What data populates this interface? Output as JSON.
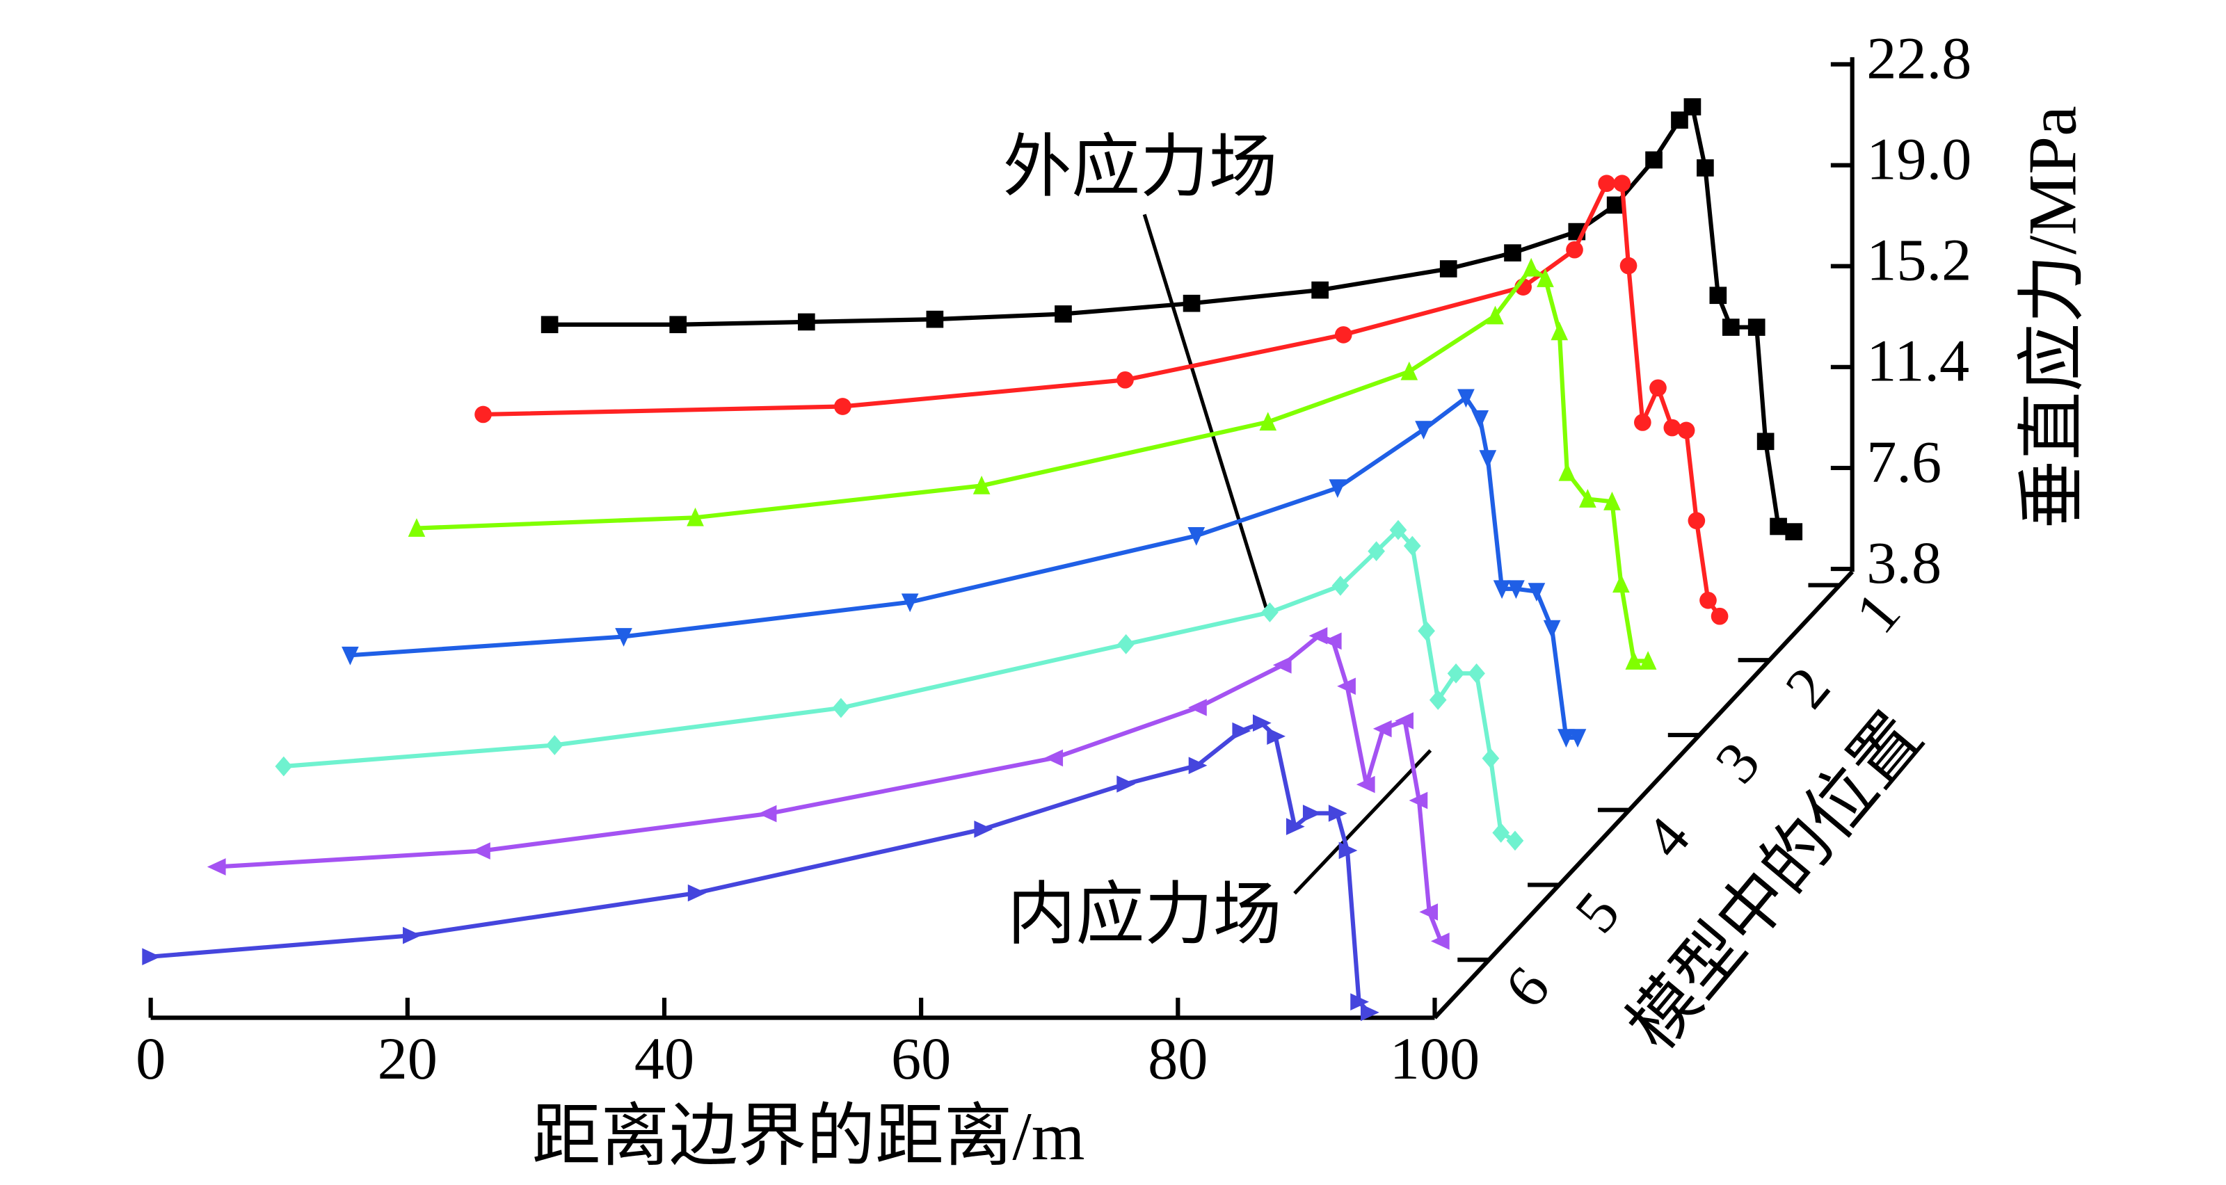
{
  "chart_data": {
    "type": "waterfall3d",
    "x_label": "距离边界的距离/m",
    "y_label": "垂直应力/MPa",
    "depth_label": "模型中的位置",
    "xlim": [
      0,
      100
    ],
    "xticks": [
      0,
      20,
      40,
      60,
      80,
      100
    ],
    "ylim": [
      3.8,
      22.8
    ],
    "yticks": [
      3.8,
      7.6,
      11.4,
      15.2,
      {
        "value": 19,
        "label": "19.0"
      },
      22.8
    ],
    "categories": [
      "1",
      "2",
      "3",
      "4",
      "5",
      "6"
    ],
    "annotations": [
      "外应力场",
      "内应力场"
    ],
    "series": [
      {
        "color": "#000000",
        "marker": "square",
        "x": [
          0,
          10,
          20,
          30,
          40,
          50,
          60,
          70,
          75,
          80,
          83,
          86,
          88,
          89,
          90,
          91,
          92,
          94,
          94.7,
          95.7,
          96.9
        ],
        "values": [
          13.0,
          13.0,
          13.1,
          13.2,
          13.4,
          13.8,
          14.3,
          15.1,
          15.7,
          16.5,
          17.5,
          19.2,
          20.7,
          21.2,
          18.9,
          14.1,
          12.9,
          12.9,
          8.6,
          5.4,
          5.2
        ]
      },
      {
        "color": "#ff2222",
        "marker": "circle",
        "x": [
          0,
          28,
          50,
          67,
          81,
          85,
          87.5,
          88.7,
          89.2,
          90.3,
          91.5,
          92.6,
          93.7,
          94.5,
          95.4,
          96.3
        ],
        "values": [
          12.2,
          12.5,
          13.5,
          15.2,
          17.0,
          18.4,
          20.9,
          20.9,
          17.8,
          11.9,
          13.2,
          11.7,
          11.6,
          8.2,
          5.2,
          4.6
        ]
      },
      {
        "color": "#80ff00",
        "marker": "triangle-up",
        "x": [
          0,
          21.7,
          44,
          66.3,
          77.3,
          84,
          86.8,
          87.9,
          89,
          89.6,
          91.2,
          93.1,
          93.8,
          94.8,
          95.9
        ],
        "values": [
          10.5,
          10.9,
          12.1,
          14.5,
          16.4,
          18.5,
          20.3,
          19.9,
          17.9,
          12.6,
          11.6,
          11.5,
          8.4,
          5.5,
          5.5
        ]
      },
      {
        "color": "#1f5fe6",
        "marker": "triangle-down",
        "x": [
          0,
          21.3,
          43.6,
          65.9,
          76.9,
          83.6,
          86.9,
          88,
          88.6,
          89.7,
          90.8,
          92.4,
          93.6,
          94.7,
          95.6
        ],
        "values": [
          8.3,
          9.0,
          10.3,
          12.8,
          14.6,
          16.8,
          18.0,
          17.2,
          15.7,
          10.8,
          10.8,
          10.7,
          9.3,
          5.2,
          5.2
        ]
      },
      {
        "color": "#6ff2cf",
        "marker": "diamond",
        "x": [
          0,
          21.1,
          43.4,
          65.6,
          76.8,
          82.3,
          85.1,
          86.8,
          87.9,
          89,
          89.9,
          91.3,
          92.9,
          94,
          94.8,
          95.9
        ],
        "values": [
          6.7,
          7.5,
          8.9,
          11.3,
          12.5,
          13.5,
          14.8,
          15.6,
          15.0,
          11.8,
          9.2,
          10.2,
          10.2,
          7.0,
          4.2,
          3.9
        ]
      },
      {
        "color": "#a452f2",
        "marker": "triangle-left",
        "x": [
          0,
          20.6,
          42.9,
          65.2,
          76.4,
          83,
          85.8,
          86.9,
          88,
          89.5,
          90.8,
          92.5,
          93.6,
          94.4,
          95.3
        ],
        "values": [
          5.5,
          6.1,
          7.5,
          9.6,
          11.5,
          13.1,
          14.2,
          14.0,
          12.3,
          8.6,
          10.7,
          11.0,
          8.0,
          3.8,
          2.7
        ]
      },
      {
        "color": "#4545dd",
        "marker": "triangle-right",
        "x": [
          0,
          20.3,
          42.5,
          64.8,
          75.9,
          81.5,
          84.9,
          86.5,
          87.6,
          89.1,
          90.4,
          92.4,
          93.2,
          94.1,
          94.9
        ],
        "values": [
          4.7,
          5.5,
          7.1,
          9.5,
          11.2,
          11.9,
          13.2,
          13.5,
          13.0,
          9.6,
          10.1,
          10.1,
          8.7,
          3.0,
          2.6
        ]
      }
    ]
  }
}
